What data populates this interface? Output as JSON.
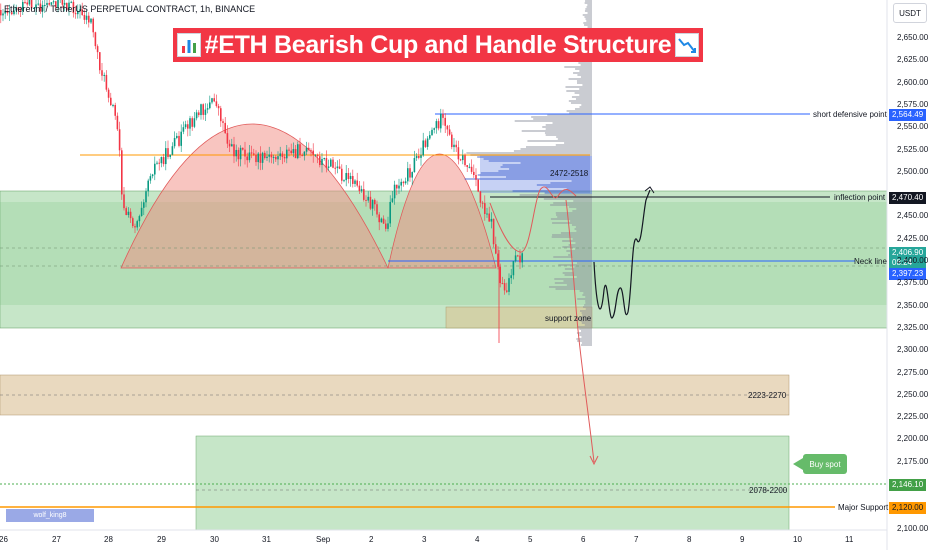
{
  "header": {
    "pair_label": "Ethereum / TetherUS PERPETUAL CONTRACT, 1h, BINANCE",
    "currency_button": "USDT"
  },
  "title": {
    "text": "#ETH Bearish Cup and Handle Structure",
    "left_icon": "bar-chart-icon",
    "right_icon": "chart-decreasing-icon"
  },
  "annotations": {
    "short_defensive": "short defensive point",
    "inflection": "inflection point",
    "neck_line": "Neck line",
    "range_top": "2472-2518",
    "support_zone": "support zone",
    "zone_mid": "2223-2270",
    "zone_low": "2078-2200",
    "major_support": "Major Support",
    "buy_spot": "Buy spot",
    "author_tag": "wolf_king8"
  },
  "price_scale": {
    "ticks": [
      "2,650.00",
      "2,625.00",
      "2,600.00",
      "2,575.00",
      "2,550.00",
      "2,525.00",
      "2,500.00",
      "2,475.00",
      "2,450.00",
      "2,425.00",
      "2,400.00",
      "2,375.00",
      "2,350.00",
      "2,325.00",
      "2,300.00",
      "2,275.00",
      "2,250.00",
      "2,225.00",
      "2,200.00",
      "2,175.00",
      "2,150.00",
      "2,125.00",
      "2,100.00"
    ],
    "tags": {
      "short_defensive": "2,564.49",
      "inflection": "2,470.40",
      "last_price": "2,406.90",
      "countdown": "08:24",
      "neck": "2,397.23",
      "green_level": "2,146.10",
      "major_support": "2,120.00"
    }
  },
  "time_scale": {
    "ticks": [
      "26",
      "27",
      "28",
      "29",
      "30",
      "31",
      "Sep",
      "2",
      "3",
      "4",
      "5",
      "6",
      "7",
      "8",
      "9",
      "10",
      "11"
    ]
  },
  "colors": {
    "title_bg": "#f23645",
    "blue_line": "#2962ff",
    "orange_line": "#ff9800",
    "green_zone": "#81c784",
    "tan_zone": "#d7b98a",
    "candle_up": "#089981",
    "candle_down": "#f23645",
    "buy_spot": "#66bb6a"
  }
}
